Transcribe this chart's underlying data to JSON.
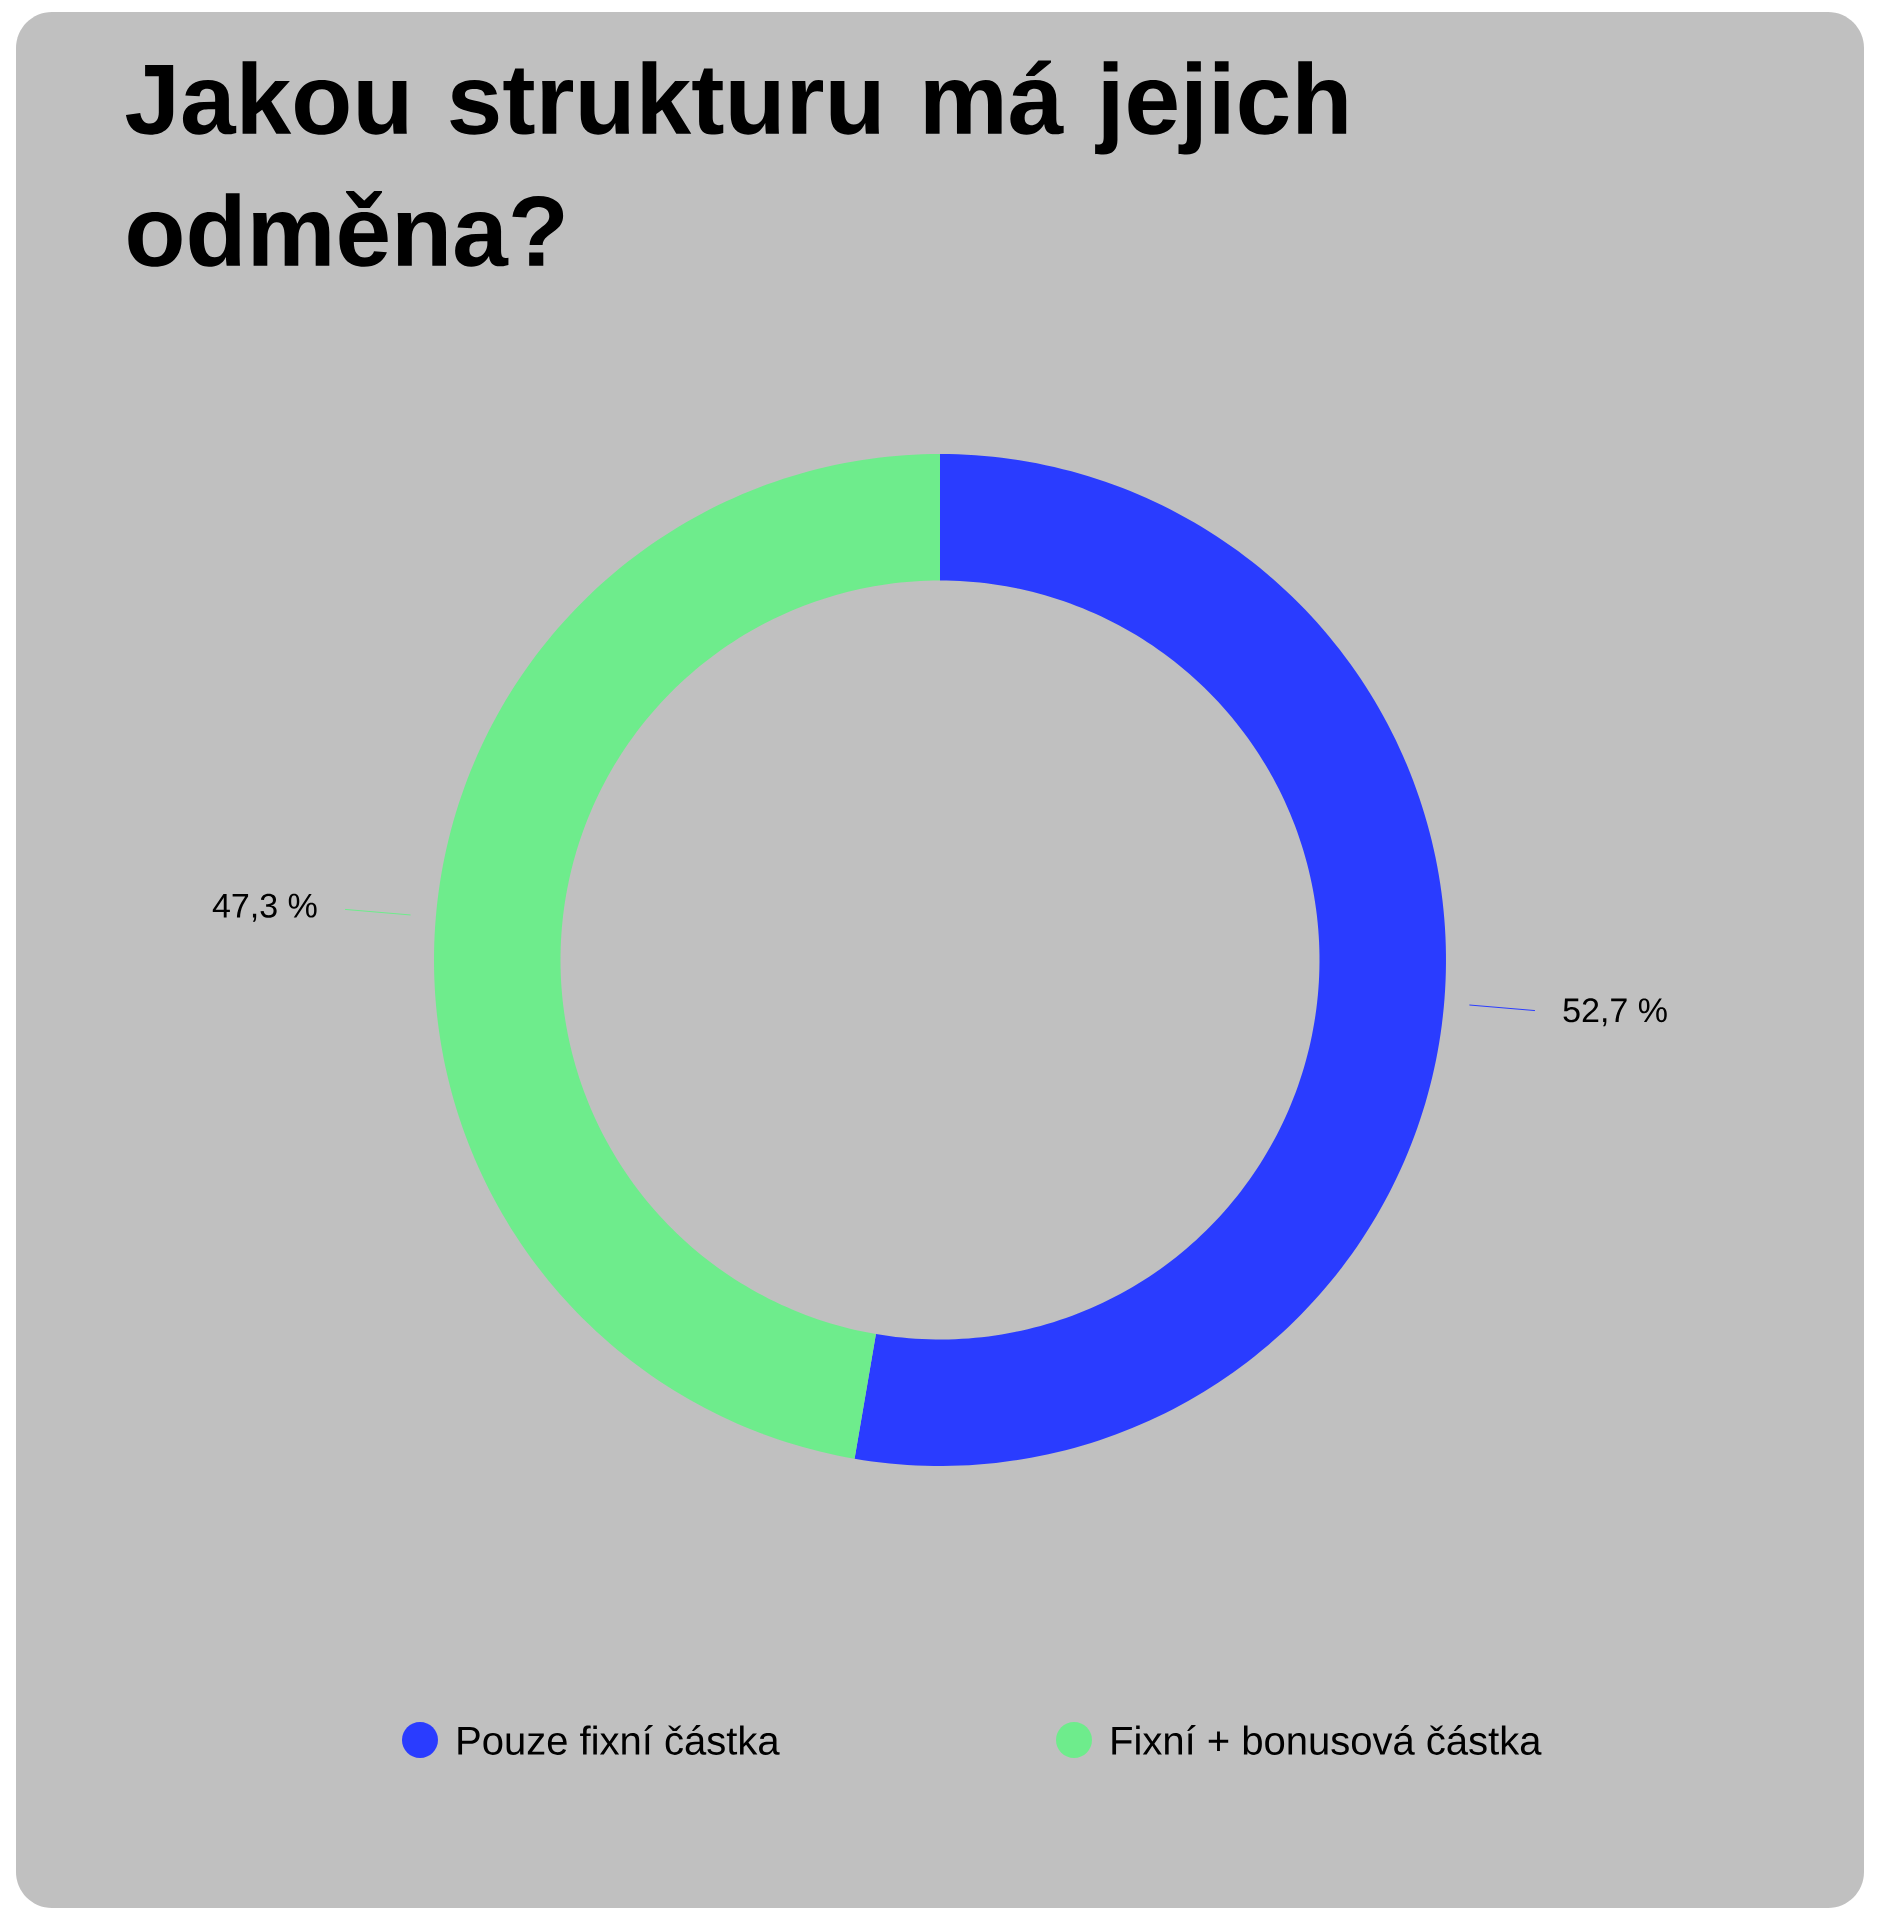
{
  "chart_data": {
    "type": "donut",
    "title": "Jakou strukturu má jejich odměna?",
    "categories": [
      "Pouze fixní částka",
      "Fixní + bonusová částka"
    ],
    "values": [
      52.7,
      47.3
    ],
    "colors": [
      "#2a3cff",
      "#6eec8c"
    ],
    "value_labels": [
      "52,7 %",
      "47,3 %"
    ],
    "legend": "bottom"
  }
}
